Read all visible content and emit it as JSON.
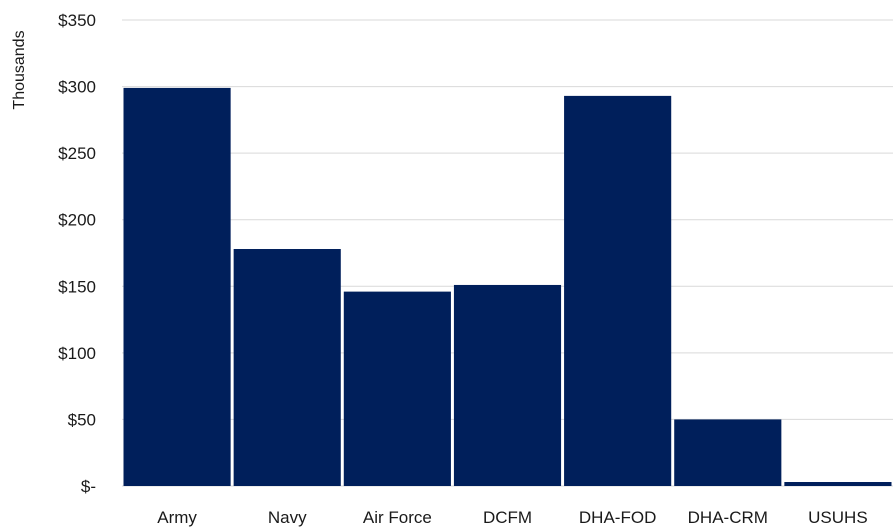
{
  "chart_data": {
    "type": "bar",
    "title": "",
    "xlabel": "",
    "ylabel": "Thousands",
    "ylim": [
      0,
      350
    ],
    "yticks": [
      0,
      50,
      100,
      150,
      200,
      250,
      300,
      350
    ],
    "ytick_labels": [
      "$-",
      "$50",
      "$100",
      "$150",
      "$200",
      "$250",
      "$300",
      "$350"
    ],
    "categories": [
      "Army",
      "Navy",
      "Air Force",
      "DCFM",
      "DHA-FOD",
      "DHA-CRM",
      "USUHS"
    ],
    "values": [
      299,
      178,
      146,
      151,
      293,
      50,
      3
    ],
    "grid": true,
    "legend": "none",
    "bar_color": "#001f5b"
  }
}
